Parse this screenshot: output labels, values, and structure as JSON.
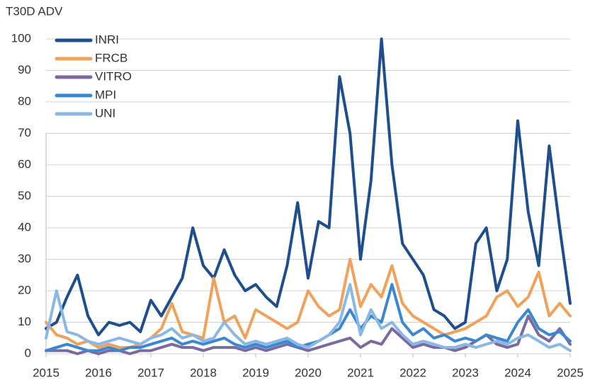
{
  "chart_data": {
    "type": "line",
    "title": "T30D ADV",
    "x": [
      2015.0,
      2015.2,
      2015.4,
      2015.6,
      2015.8,
      2016.0,
      2016.2,
      2016.4,
      2016.6,
      2016.8,
      2017.0,
      2017.2,
      2017.4,
      2017.6,
      2017.8,
      2018.0,
      2018.2,
      2018.4,
      2018.6,
      2018.8,
      2019.0,
      2019.2,
      2019.4,
      2019.6,
      2019.8,
      2020.0,
      2020.2,
      2020.4,
      2020.6,
      2020.8,
      2021.0,
      2021.2,
      2021.4,
      2021.6,
      2021.8,
      2022.0,
      2022.2,
      2022.4,
      2022.6,
      2022.8,
      2023.0,
      2023.2,
      2023.4,
      2023.6,
      2023.8,
      2024.0,
      2024.2,
      2024.4,
      2024.6,
      2024.8,
      2025.0
    ],
    "series": [
      {
        "name": "INRI",
        "color": "#1f4e8c",
        "values": [
          8,
          10,
          18,
          25,
          12,
          6,
          10,
          9,
          10,
          7,
          17,
          12,
          18,
          24,
          40,
          28,
          24,
          33,
          25,
          20,
          22,
          18,
          15,
          28,
          48,
          24,
          42,
          40,
          88,
          70,
          30,
          55,
          100,
          60,
          35,
          30,
          25,
          14,
          12,
          8,
          10,
          35,
          40,
          20,
          30,
          74,
          45,
          28,
          66,
          40,
          16
        ]
      },
      {
        "name": "FRCB",
        "color": "#f0a25a",
        "values": [
          10,
          6,
          5,
          3,
          4,
          2,
          3,
          2,
          2,
          3,
          5,
          8,
          16,
          7,
          6,
          5,
          24,
          10,
          12,
          5,
          14,
          12,
          10,
          8,
          10,
          20,
          15,
          12,
          14,
          30,
          15,
          22,
          18,
          28,
          16,
          12,
          10,
          8,
          6,
          7,
          8,
          10,
          12,
          18,
          20,
          15,
          18,
          26,
          12,
          16,
          12
        ]
      },
      {
        "name": "VITRO",
        "color": "#7b6aa0",
        "values": [
          1,
          1,
          1,
          0,
          1,
          0,
          1,
          1,
          0,
          1,
          1,
          2,
          3,
          2,
          2,
          1,
          2,
          2,
          2,
          1,
          2,
          1,
          2,
          3,
          2,
          1,
          2,
          3,
          4,
          5,
          2,
          4,
          3,
          8,
          5,
          2,
          3,
          2,
          2,
          1,
          2,
          4,
          6,
          3,
          2,
          3,
          12,
          6,
          4,
          8,
          3
        ]
      },
      {
        "name": "MPI",
        "color": "#3a88d0",
        "values": [
          1,
          2,
          3,
          2,
          1,
          1,
          2,
          1,
          2,
          2,
          3,
          4,
          5,
          3,
          4,
          3,
          4,
          5,
          3,
          2,
          3,
          2,
          3,
          4,
          2,
          3,
          4,
          6,
          8,
          14,
          8,
          12,
          10,
          22,
          10,
          6,
          8,
          5,
          6,
          4,
          5,
          4,
          6,
          5,
          4,
          10,
          14,
          8,
          6,
          7,
          4
        ]
      },
      {
        "name": "UNI",
        "color": "#8ab8e6",
        "values": [
          5,
          20,
          7,
          6,
          4,
          3,
          4,
          5,
          4,
          3,
          5,
          6,
          8,
          5,
          6,
          4,
          5,
          10,
          6,
          3,
          4,
          3,
          4,
          5,
          3,
          2,
          4,
          6,
          10,
          22,
          6,
          14,
          8,
          10,
          6,
          3,
          4,
          3,
          2,
          2,
          3,
          2,
          3,
          4,
          3,
          5,
          6,
          4,
          2,
          3,
          1
        ]
      }
    ],
    "xlim": [
      2015,
      2025
    ],
    "xticks": [
      2015,
      2016,
      2017,
      2018,
      2019,
      2020,
      2021,
      2022,
      2023,
      2024,
      2025
    ],
    "ylim": [
      0,
      100
    ],
    "yticks": [
      0,
      10,
      20,
      30,
      40,
      50,
      60,
      70,
      80,
      90,
      100
    ],
    "grid": true,
    "legend": "top-left"
  }
}
